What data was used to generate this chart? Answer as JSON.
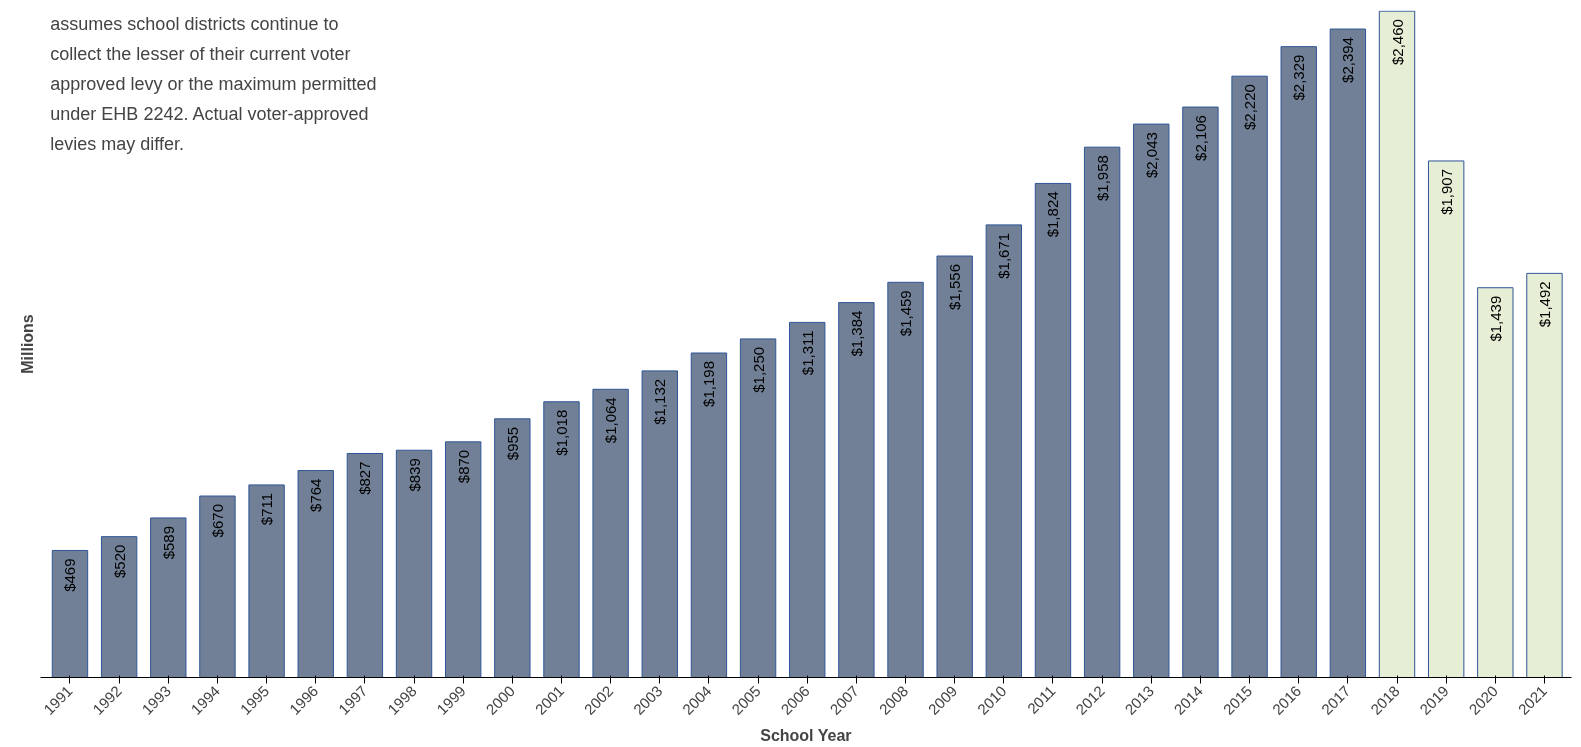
{
  "chart_data": {
    "type": "bar",
    "xlabel": "School Year",
    "ylabel": "Millions",
    "annotations": [
      "assumes school districts continue to\ncollect the lesser of their current voter\napproved levy or the maximum permitted\nunder EHB 2242.  Actual voter-approved\nlevies may differ."
    ],
    "categories": [
      "1991",
      "1992",
      "1993",
      "1994",
      "1995",
      "1996",
      "1997",
      "1998",
      "1999",
      "2000",
      "2001",
      "2002",
      "2003",
      "2004",
      "2005",
      "2006",
      "2007",
      "2008",
      "2009",
      "2010",
      "2011",
      "2012",
      "2013",
      "2014",
      "2015",
      "2016",
      "2017",
      "2018",
      "2019",
      "2020",
      "2021"
    ],
    "values": [
      469,
      520,
      589,
      670,
      711,
      764,
      827,
      839,
      870,
      955,
      1018,
      1064,
      1132,
      1198,
      1250,
      1311,
      1384,
      1459,
      1556,
      1671,
      1824,
      1958,
      2043,
      2106,
      2220,
      2329,
      2394,
      2460,
      1907,
      1439,
      1492
    ],
    "value_labels": [
      "$469",
      "$520",
      "$589",
      "$670",
      "$711",
      "$764",
      "$827",
      "$839",
      "$870",
      "$955",
      "$1,018",
      "$1,064",
      "$1,132",
      "$1,198",
      "$1,250",
      "$1,311",
      "$1,384",
      "$1,459",
      "$1,556",
      "$1,671",
      "$1,824",
      "$1,958",
      "$2,043",
      "$2,106",
      "$2,220",
      "$2,329",
      "$2,394",
      "$2,460",
      "$1,907",
      "$1,439",
      "$1,492"
    ],
    "colors": [
      "#718096",
      "#718096",
      "#718096",
      "#718096",
      "#718096",
      "#718096",
      "#718096",
      "#718096",
      "#718096",
      "#718096",
      "#718096",
      "#718096",
      "#718096",
      "#718096",
      "#718096",
      "#718096",
      "#718096",
      "#718096",
      "#718096",
      "#718096",
      "#718096",
      "#718096",
      "#718096",
      "#718096",
      "#718096",
      "#718096",
      "#718096",
      "#e6eed6",
      "#e6eed6",
      "#e6eed6",
      "#e6eed6"
    ],
    "grid": false
  }
}
